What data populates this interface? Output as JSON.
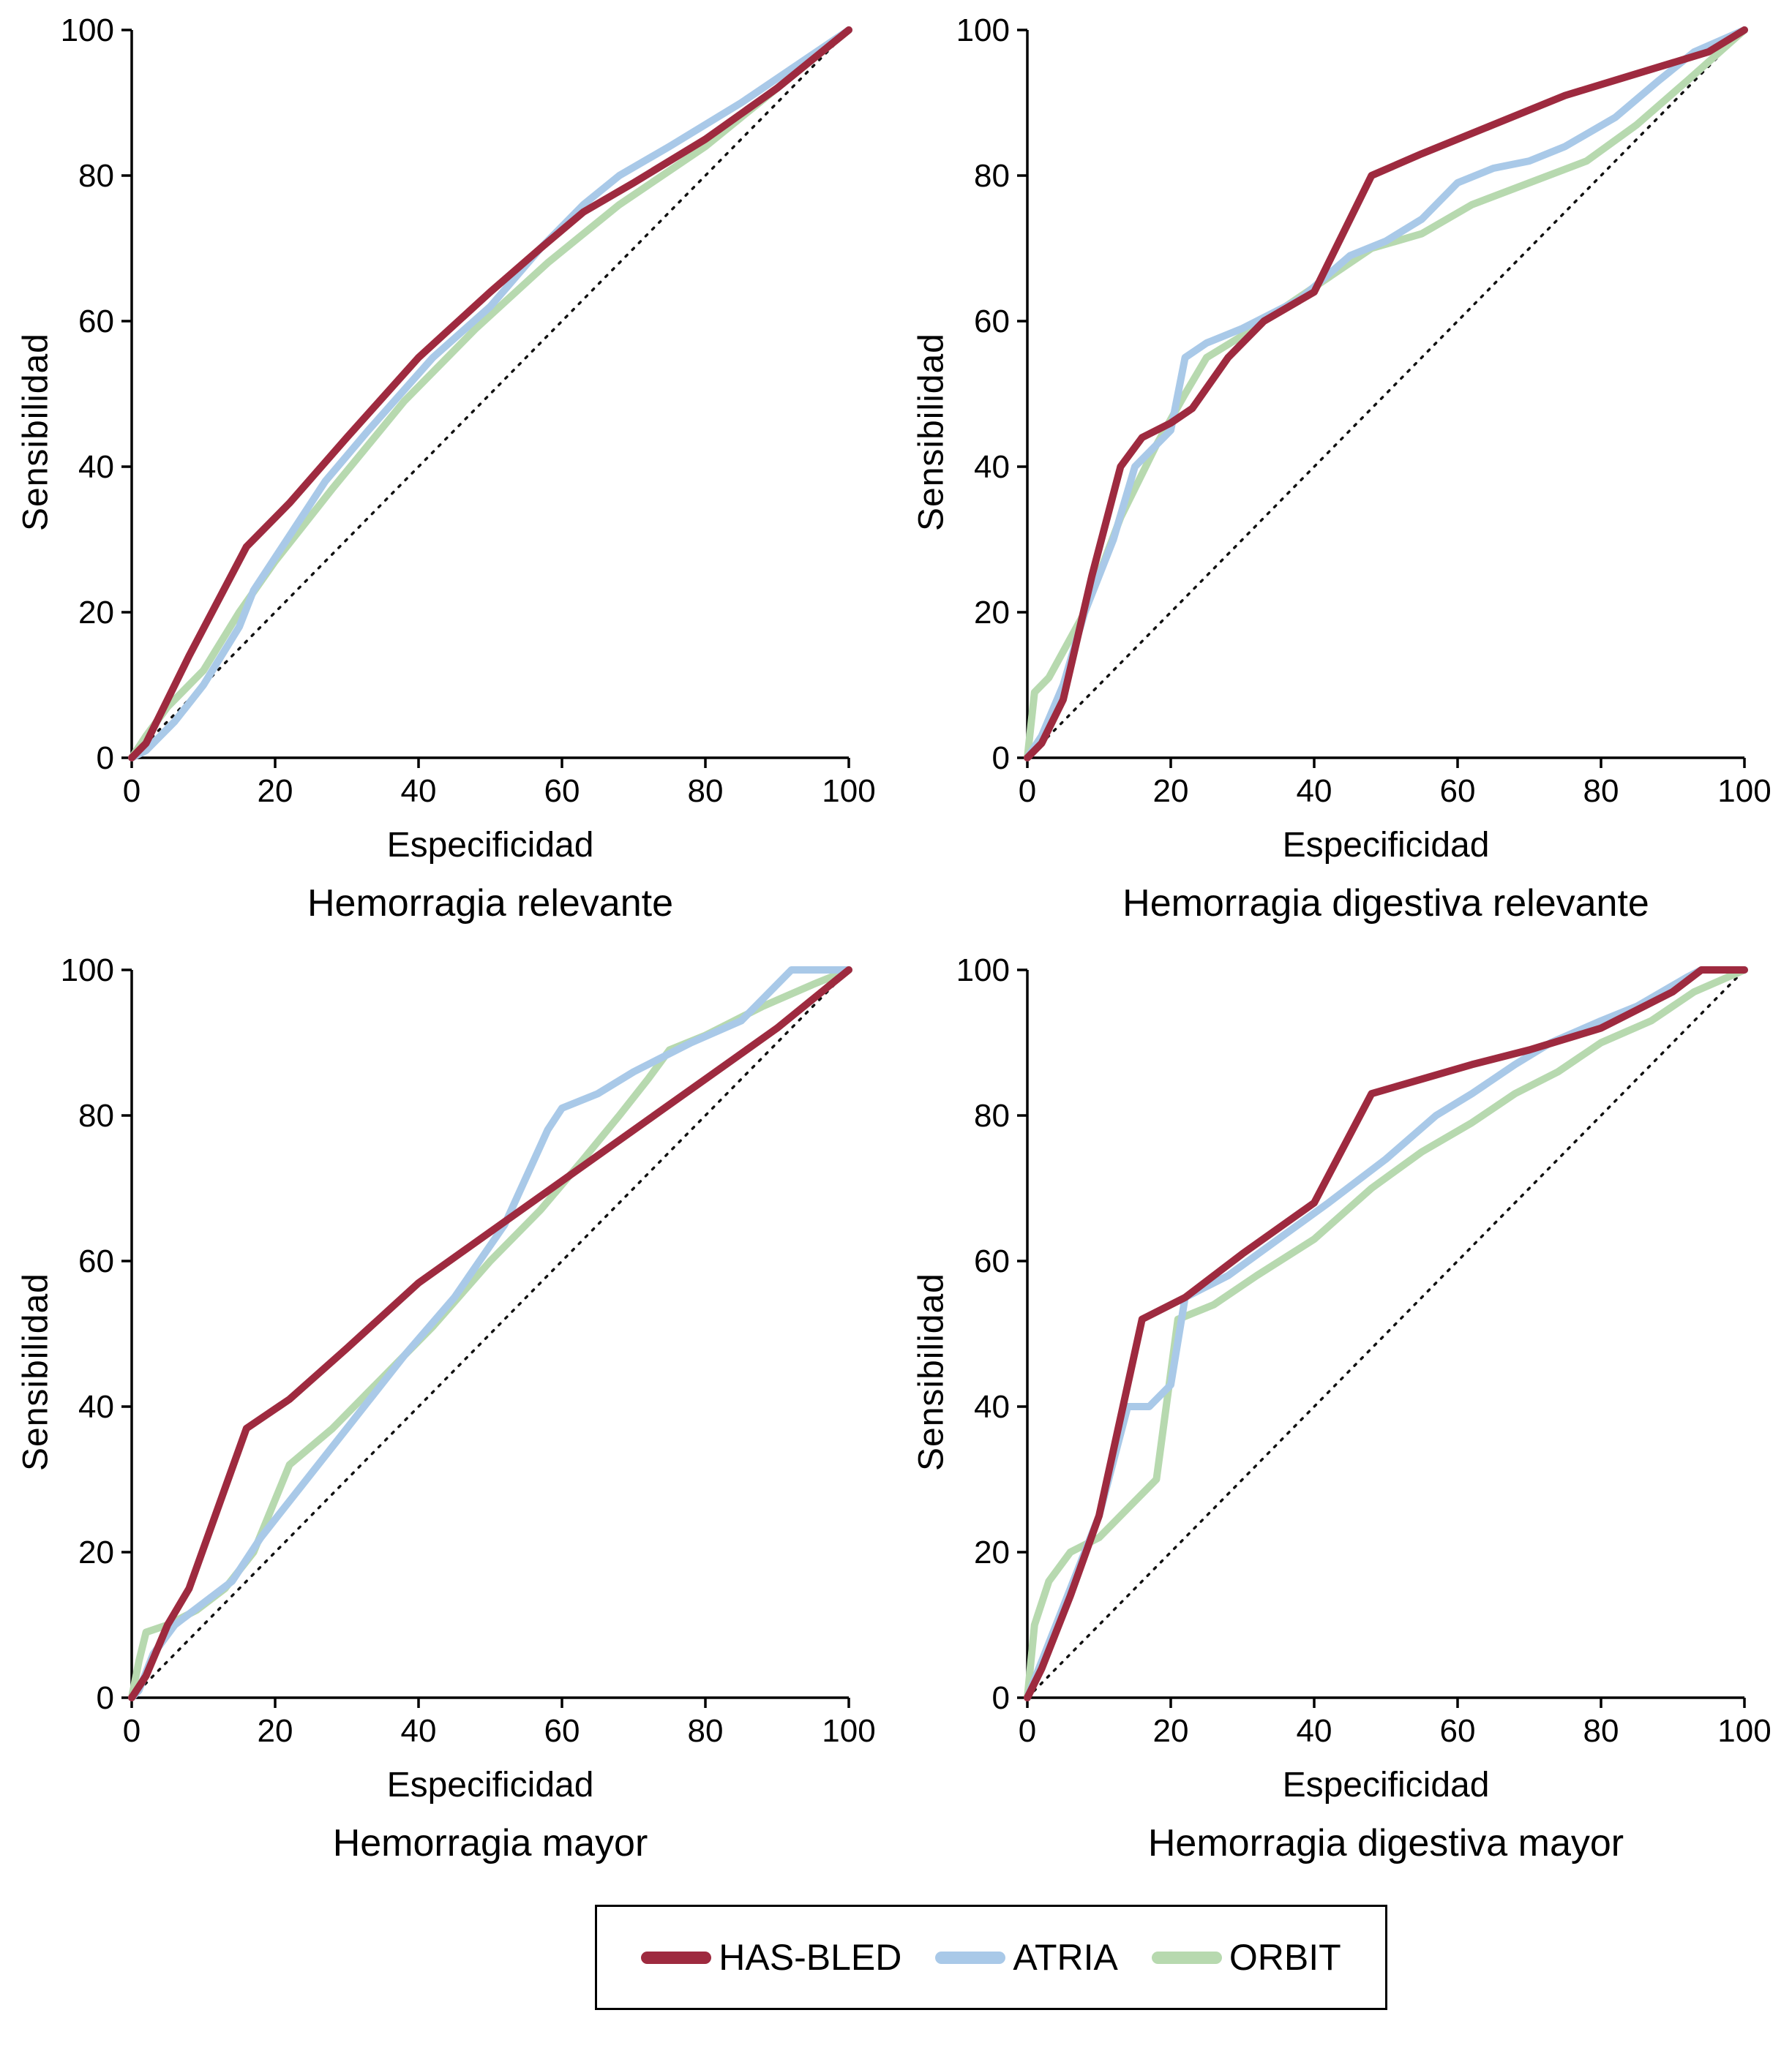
{
  "figure": {
    "background": "#ffffff",
    "axis_color": "#000000",
    "reference_line_style": "dotted-diagonal"
  },
  "legend": {
    "position": "bottom-center",
    "items": [
      {
        "label": "HAS-BLED",
        "color": "#9e2a3f"
      },
      {
        "label": "ATRIA",
        "color": "#a9c9e8"
      },
      {
        "label": "ORBIT",
        "color": "#b7d9af"
      }
    ]
  },
  "chart_data": [
    {
      "type": "line",
      "title": "Hemorragia relevante",
      "xlabel": "Especificidad",
      "ylabel": "Sensibilidad",
      "xlim": [
        0,
        100
      ],
      "ylim": [
        0,
        100
      ],
      "xticks": [
        0,
        20,
        40,
        60,
        80,
        100
      ],
      "yticks": [
        0,
        20,
        40,
        60,
        80,
        100
      ],
      "grid": false,
      "diagonal_reference": true,
      "series": [
        {
          "name": "ORBIT",
          "color": "#b7d9af",
          "x": [
            0,
            2,
            5,
            10,
            15,
            20,
            28,
            38,
            48,
            58,
            68,
            80,
            90,
            100
          ],
          "y": [
            0,
            3,
            7,
            12,
            20,
            27,
            37,
            49,
            59,
            68,
            76,
            84,
            92,
            100
          ]
        },
        {
          "name": "ATRIA",
          "color": "#a9c9e8",
          "x": [
            0,
            2,
            6,
            10,
            15,
            17,
            21,
            27,
            33,
            42,
            50,
            57,
            63,
            68,
            75,
            85,
            100
          ],
          "y": [
            0,
            1,
            5,
            10,
            18,
            23,
            29,
            38,
            45,
            55,
            62,
            70,
            76,
            80,
            84,
            90,
            100
          ]
        },
        {
          "name": "HAS-BLED",
          "color": "#9e2a3f",
          "x": [
            0,
            2,
            4,
            8,
            16,
            22,
            30,
            40,
            50,
            57,
            63,
            70,
            80,
            90,
            100
          ],
          "y": [
            0,
            2,
            6,
            14,
            29,
            35,
            44,
            55,
            64,
            70,
            75,
            79,
            85,
            92,
            100
          ]
        }
      ]
    },
    {
      "type": "line",
      "title": "Hemorragia digestiva relevante",
      "xlabel": "Especificidad",
      "ylabel": "Sensibilidad",
      "xlim": [
        0,
        100
      ],
      "ylim": [
        0,
        100
      ],
      "xticks": [
        0,
        20,
        40,
        60,
        80,
        100
      ],
      "yticks": [
        0,
        20,
        40,
        60,
        80,
        100
      ],
      "grid": false,
      "diagonal_reference": true,
      "series": [
        {
          "name": "ORBIT",
          "color": "#b7d9af",
          "x": [
            0,
            1,
            3,
            8,
            13,
            18,
            22,
            25,
            30,
            36,
            42,
            48,
            55,
            62,
            70,
            78,
            85,
            92,
            100
          ],
          "y": [
            0,
            9,
            11,
            20,
            33,
            43,
            50,
            55,
            58,
            62,
            66,
            70,
            72,
            76,
            79,
            82,
            87,
            93,
            100
          ]
        },
        {
          "name": "ATRIA",
          "color": "#a9c9e8",
          "x": [
            0,
            2,
            5,
            8,
            12,
            15,
            20,
            22,
            25,
            30,
            38,
            45,
            50,
            55,
            60,
            65,
            70,
            75,
            82,
            88,
            93,
            100
          ],
          "y": [
            0,
            3,
            10,
            20,
            30,
            40,
            45,
            55,
            57,
            59,
            63,
            69,
            71,
            74,
            79,
            81,
            82,
            84,
            88,
            93,
            97,
            100
          ]
        },
        {
          "name": "HAS-BLED",
          "color": "#9e2a3f",
          "x": [
            0,
            2,
            5,
            9,
            13,
            16,
            20,
            23,
            28,
            33,
            40,
            48,
            55,
            65,
            75,
            85,
            95,
            100
          ],
          "y": [
            0,
            2,
            8,
            25,
            40,
            44,
            46,
            48,
            55,
            60,
            64,
            80,
            83,
            87,
            91,
            94,
            97,
            100
          ]
        }
      ]
    },
    {
      "type": "line",
      "title": "Hemorragia mayor",
      "xlabel": "Especificidad",
      "ylabel": "Sensibilidad",
      "xlim": [
        0,
        100
      ],
      "ylim": [
        0,
        100
      ],
      "xticks": [
        0,
        20,
        40,
        60,
        80,
        100
      ],
      "yticks": [
        0,
        20,
        40,
        60,
        80,
        100
      ],
      "grid": false,
      "diagonal_reference": true,
      "series": [
        {
          "name": "ORBIT",
          "color": "#b7d9af",
          "x": [
            0,
            1,
            2,
            5,
            9,
            13,
            17,
            22,
            28,
            35,
            42,
            50,
            57,
            63,
            68,
            72,
            75,
            80,
            88,
            95,
            100
          ],
          "y": [
            0,
            5,
            9,
            10,
            12,
            15,
            20,
            32,
            37,
            44,
            51,
            60,
            67,
            74,
            80,
            85,
            89,
            91,
            95,
            98,
            100
          ]
        },
        {
          "name": "ATRIA",
          "color": "#a9c9e8",
          "x": [
            0,
            1,
            3,
            6,
            10,
            14,
            18,
            22,
            30,
            38,
            45,
            52,
            58,
            60,
            65,
            70,
            78,
            85,
            92,
            100
          ],
          "y": [
            0,
            1,
            6,
            10,
            13,
            16,
            22,
            27,
            37,
            47,
            55,
            65,
            78,
            81,
            83,
            86,
            90,
            93,
            100,
            100
          ]
        },
        {
          "name": "HAS-BLED",
          "color": "#9e2a3f",
          "x": [
            0,
            2,
            5,
            8,
            16,
            22,
            30,
            40,
            50,
            60,
            70,
            80,
            90,
            100
          ],
          "y": [
            0,
            3,
            10,
            15,
            37,
            41,
            48,
            57,
            64,
            71,
            78,
            85,
            92,
            100
          ]
        }
      ]
    },
    {
      "type": "line",
      "title": "Hemorragia digestiva mayor",
      "xlabel": "Especificidad",
      "ylabel": "Sensibilidad",
      "xlim": [
        0,
        100
      ],
      "ylim": [
        0,
        100
      ],
      "xticks": [
        0,
        20,
        40,
        60,
        80,
        100
      ],
      "yticks": [
        0,
        20,
        40,
        60,
        80,
        100
      ],
      "grid": false,
      "diagonal_reference": true,
      "series": [
        {
          "name": "ORBIT",
          "color": "#b7d9af",
          "x": [
            0,
            1,
            3,
            6,
            10,
            14,
            18,
            21,
            26,
            32,
            40,
            48,
            55,
            62,
            68,
            74,
            80,
            87,
            93,
            100
          ],
          "y": [
            0,
            10,
            16,
            20,
            22,
            26,
            30,
            52,
            54,
            58,
            63,
            70,
            75,
            79,
            83,
            86,
            90,
            93,
            97,
            100
          ]
        },
        {
          "name": "ATRIA",
          "color": "#a9c9e8",
          "x": [
            0,
            2,
            6,
            10,
            14,
            17,
            20,
            22,
            28,
            35,
            42,
            50,
            57,
            62,
            68,
            73,
            80,
            85,
            92,
            94,
            100
          ],
          "y": [
            0,
            5,
            15,
            25,
            40,
            40,
            43,
            55,
            58,
            63,
            68,
            74,
            80,
            83,
            87,
            90,
            93,
            95,
            99,
            100,
            100
          ]
        },
        {
          "name": "HAS-BLED",
          "color": "#9e2a3f",
          "x": [
            0,
            2,
            6,
            10,
            16,
            22,
            30,
            40,
            48,
            55,
            62,
            70,
            80,
            90,
            94,
            100
          ],
          "y": [
            0,
            4,
            14,
            25,
            52,
            55,
            61,
            68,
            83,
            85,
            87,
            89,
            92,
            97,
            100,
            100
          ]
        }
      ]
    }
  ]
}
